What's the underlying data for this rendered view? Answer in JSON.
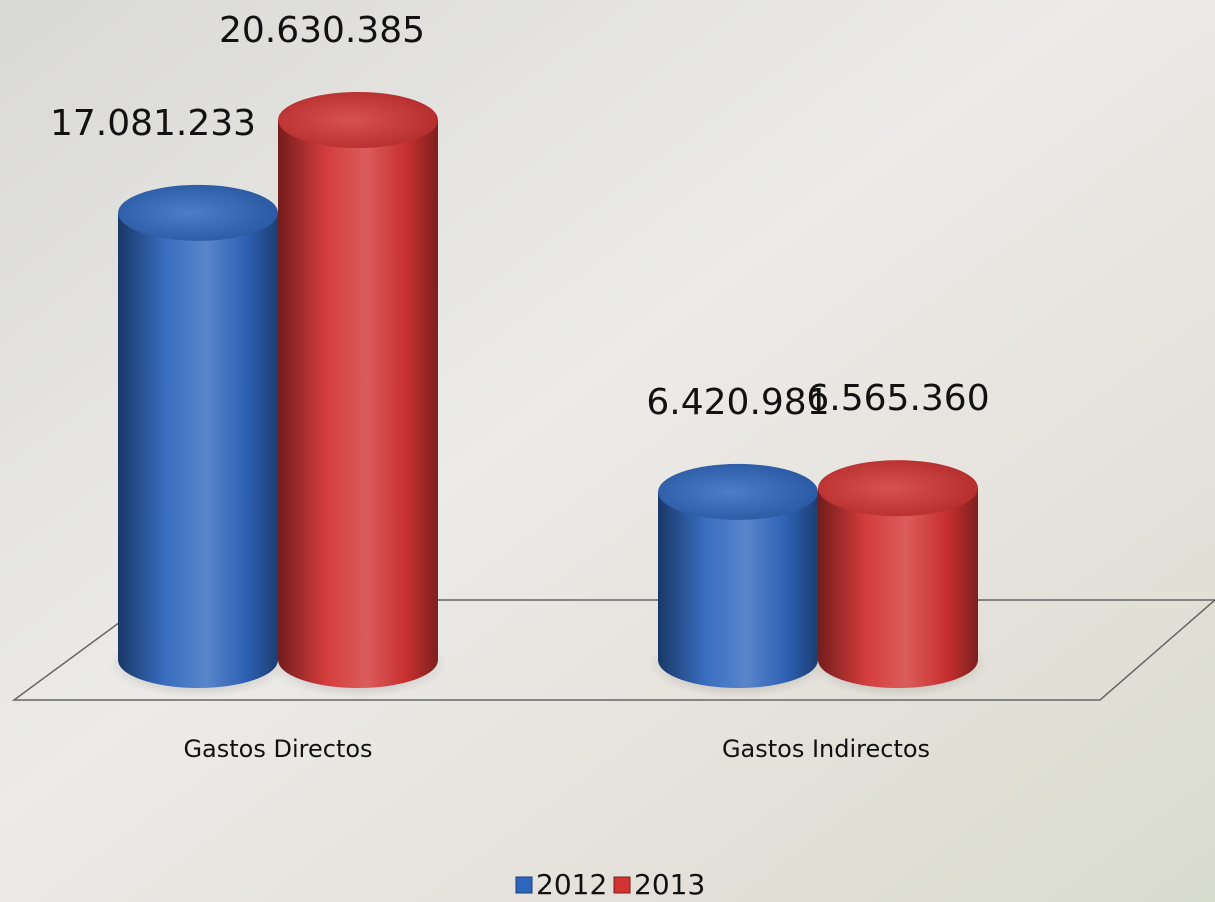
{
  "chart_data": {
    "type": "bar",
    "categories": [
      "Gastos Directos",
      "Gastos Indirectos"
    ],
    "series": [
      {
        "name": "2012",
        "color": "#2f66bd",
        "values": [
          17081233,
          6420981
        ],
        "value_labels": [
          "17.081.233",
          "6.420.981"
        ]
      },
      {
        "name": "2013",
        "color": "#d23333",
        "values": [
          20630385,
          6565360
        ],
        "value_labels": [
          "20.630.385",
          "6.565.360"
        ]
      }
    ]
  }
}
